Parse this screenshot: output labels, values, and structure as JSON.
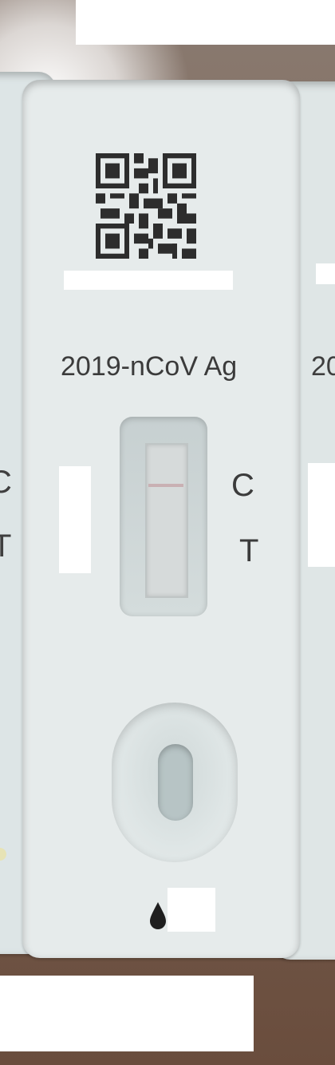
{
  "test_name": "2019-nCoV Ag",
  "main_cassette": {
    "control_label": "C",
    "test_label": "T"
  },
  "left_cassette": {
    "control_label": "C",
    "test_label": "T"
  },
  "right_cassette": {
    "name_fragment": "20"
  },
  "colors": {
    "cassette": "#e6ebeb",
    "background": "#6b5548",
    "text": "#3b3b3b",
    "control_line": "#c9b0b3"
  }
}
